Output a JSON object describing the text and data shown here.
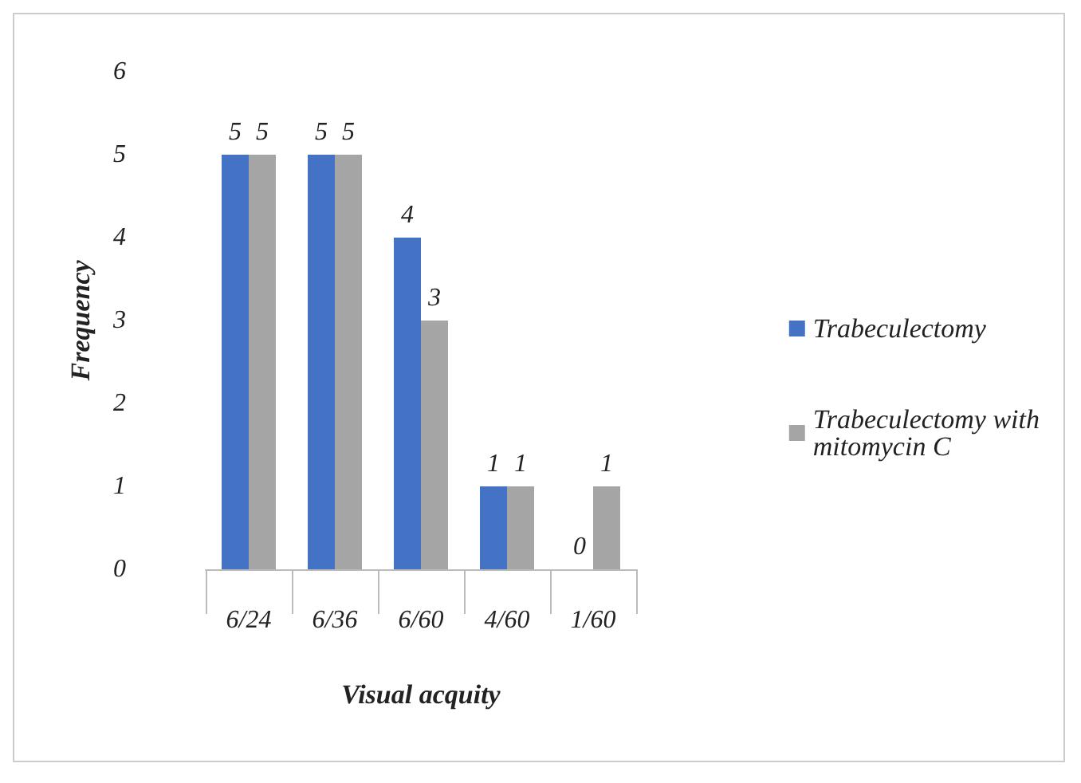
{
  "chart_data": {
    "type": "bar",
    "xlabel": "Visual acquity",
    "ylabel": "Frequency",
    "categories": [
      "6/24",
      "6/36",
      "6/60",
      "4/60",
      "1/60"
    ],
    "series": [
      {
        "name": "Trabeculectomy",
        "color": "#4472c4",
        "values": [
          5,
          5,
          4,
          1,
          0
        ]
      },
      {
        "name": "Trabeculectomy with mitomycin C",
        "color": "#a5a5a5",
        "values": [
          5,
          5,
          3,
          1,
          1
        ]
      }
    ],
    "ylim": [
      0,
      6
    ],
    "yticks": [
      0,
      1,
      2,
      3,
      4,
      5,
      6
    ],
    "grid": false,
    "legend": "right",
    "data_labels": true
  }
}
